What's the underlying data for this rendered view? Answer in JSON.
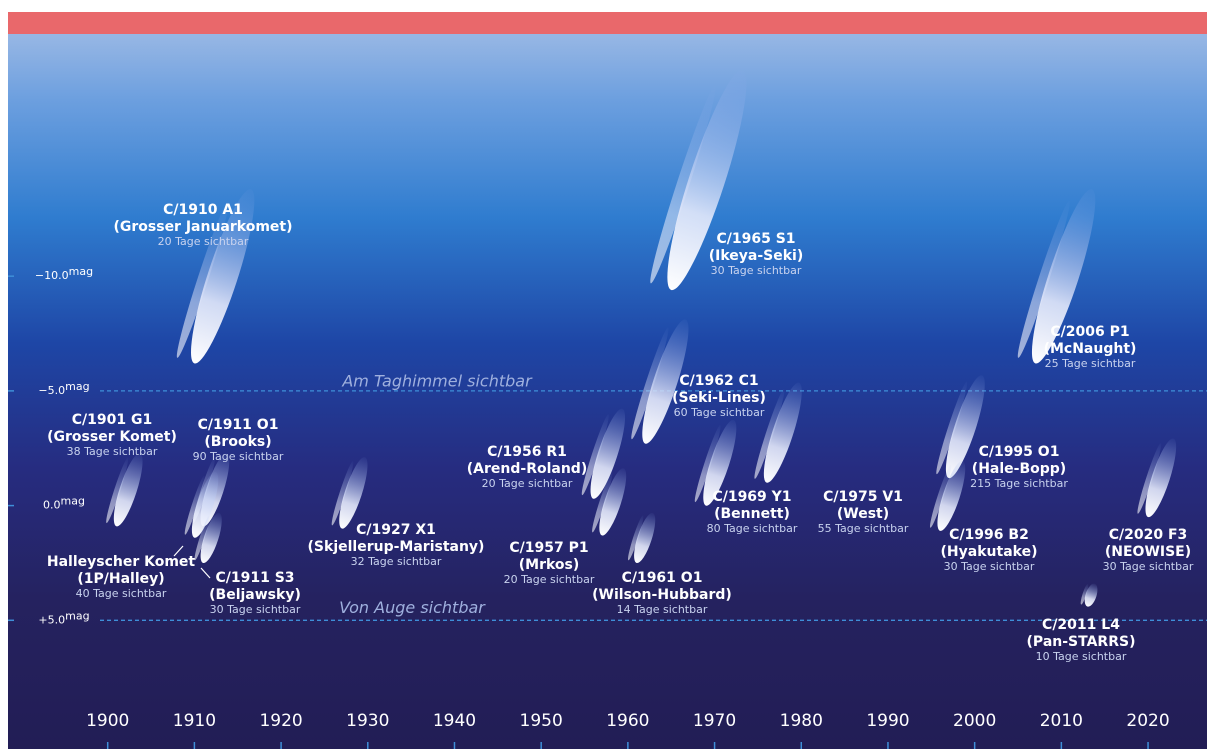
{
  "chart_data": {
    "type": "comet",
    "y_unit": "mag",
    "xlim": [
      1888.5,
      2026.8
    ],
    "ylim": [
      10,
      -20.6
    ],
    "xticks": [
      1900,
      1910,
      1920,
      1930,
      1940,
      1950,
      1960,
      1970,
      1980,
      1990,
      2000,
      2010,
      2020
    ],
    "yticks": [
      {
        "value": -10,
        "label": "−10.0"
      },
      {
        "value": -5,
        "label": "−5.0"
      },
      {
        "value": 0,
        "label": "0.0"
      },
      {
        "value": 5,
        "label": "+5.0"
      }
    ],
    "reference_lines": [
      {
        "value": -5,
        "label": "Am Taghimmel sichtbar"
      },
      {
        "value": 5,
        "label": "Von Auge sichtbar"
      }
    ],
    "comets": [
      {
        "designation": "C/1901 G1",
        "name": "(Grosser Komet)",
        "visibility": "38 Tage sichtbar",
        "year": 1901,
        "mag": 0.9
      },
      {
        "designation": "C/1910 A1",
        "name": "(Grosser Januarkomet)",
        "visibility": "20 Tage sichtbar",
        "year": 1910,
        "mag": -6.2
      },
      {
        "designation": "C/1911 O1",
        "name": "(Brooks)",
        "visibility": "90 Tage sichtbar",
        "year": 1911,
        "mag": 0.9
      },
      {
        "designation": "Halleyscher Komet",
        "name": "(1P/Halley)",
        "visibility": "40 Tage sichtbar",
        "year": 1910,
        "mag": 1.4
      },
      {
        "designation": "C/1911 S3",
        "name": "(Beljawsky)",
        "visibility": "30 Tage sichtbar",
        "year": 1911,
        "mag": 2.5
      },
      {
        "designation": "C/1927 X1",
        "name": "(Skjellerup-Maristany)",
        "visibility": "32 Tage sichtbar",
        "year": 1927,
        "mag": 1
      },
      {
        "designation": "C/1956 R1",
        "name": "(Arend-Roland)",
        "visibility": "20 Tage sichtbar",
        "year": 1956,
        "mag": -0.3
      },
      {
        "designation": "C/1957 P1",
        "name": "(Mrkos)",
        "visibility": "20 Tage sichtbar",
        "year": 1957,
        "mag": 1.3
      },
      {
        "designation": "C/1961 O1",
        "name": "(Wilson-Hubbard)",
        "visibility": "14 Tage sichtbar",
        "year": 1961,
        "mag": 2.5
      },
      {
        "designation": "C/1962 C1",
        "name": "(Seki-Lines)",
        "visibility": "60 Tage sichtbar",
        "year": 1962,
        "mag": -2.7
      },
      {
        "designation": "C/1965 S1",
        "name": "(Ikeya-Seki)",
        "visibility": "30 Tage sichtbar",
        "year": 1965,
        "mag": -9.4
      },
      {
        "designation": "C/1969 Y1",
        "name": "(Bennett)",
        "visibility": "80 Tage sichtbar",
        "year": 1969,
        "mag": 0
      },
      {
        "designation": "C/1975 V1",
        "name": "(West)",
        "visibility": "55 Tage sichtbar",
        "year": 1976,
        "mag": -1
      },
      {
        "designation": "C/1995 O1",
        "name": "(Hale-Bopp)",
        "visibility": "215 Tage sichtbar",
        "year": 1997,
        "mag": -1.2
      },
      {
        "designation": "C/1996 B2",
        "name": "(Hyakutake)",
        "visibility": "30 Tage sichtbar",
        "year": 1996,
        "mag": 1.1
      },
      {
        "designation": "C/2006 P1",
        "name": "(McNaught)",
        "visibility": "25 Tage sichtbar",
        "year": 2007,
        "mag": -6.2
      },
      {
        "designation": "C/2011 L4",
        "name": "(Pan-STARRS)",
        "visibility": "10 Tage sichtbar",
        "year": 2013,
        "mag": 4.4
      },
      {
        "designation": "C/2020 F3",
        "name": "(NEOWISE)",
        "visibility": "30 Tage sichtbar",
        "year": 2020,
        "mag": 0.5
      }
    ]
  }
}
